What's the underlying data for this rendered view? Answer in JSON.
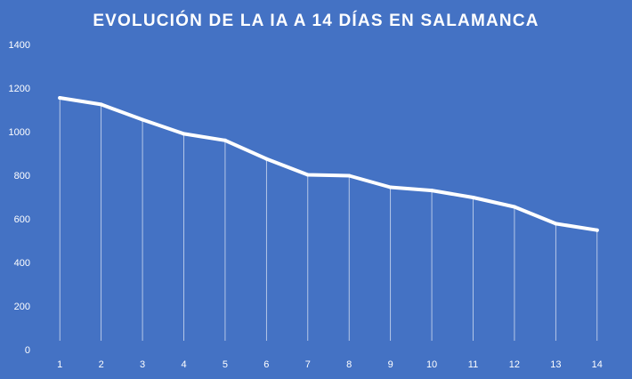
{
  "colors": {
    "background": "#4472C4",
    "line": "#FFFFFF",
    "drop_lines": "#FFFFFF",
    "text": "#FFFFFF",
    "axis_text": "#FFFFFF"
  },
  "chart_data": {
    "type": "line",
    "title": "EVOLUCIÓN DE LA IA A 14 DÍAS EN SALAMANCA",
    "xlabel": "",
    "ylabel": "",
    "categories": [
      "1",
      "2",
      "3",
      "4",
      "5",
      "6",
      "7",
      "8",
      "9",
      "10",
      "11",
      "12",
      "13",
      "14"
    ],
    "series": [
      {
        "values": [
          1155,
          1125,
          1055,
          990,
          960,
          875,
          802,
          798,
          745,
          730,
          698,
          655,
          578,
          548
        ]
      }
    ],
    "ylim": [
      0,
      1400
    ],
    "yticks": [
      "0",
      "200",
      "400",
      "600",
      "800",
      "1000",
      "1200",
      "1400"
    ],
    "grid": false,
    "drop_lines": true,
    "legend": "none"
  }
}
